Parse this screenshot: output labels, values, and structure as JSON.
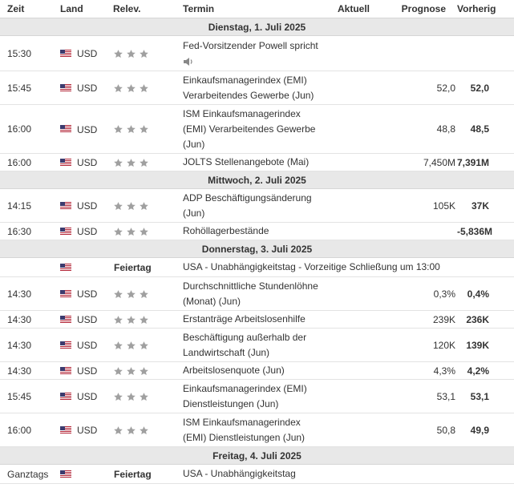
{
  "header": {
    "time": "Zeit",
    "country": "Land",
    "relevance": "Relev.",
    "event": "Termin",
    "actual": "Aktuell",
    "forecast": "Prognose",
    "previous": "Vorherig"
  },
  "colors": {
    "star": "#a0a0a0",
    "day_bar": "#e8e8e8",
    "border": "#e3e3e3",
    "flag_red": "#b22234",
    "flag_blue": "#3c3b6e"
  },
  "days": [
    {
      "label": "Dienstag, 1. Juli 2025",
      "events": [
        {
          "time": "15:30",
          "currency": "USD",
          "stars": 3,
          "lines": [
            "Fed-Vorsitzender Powell spricht"
          ],
          "speech_icon": true,
          "actual": "",
          "forecast": "",
          "previous": ""
        },
        {
          "time": "15:45",
          "currency": "USD",
          "stars": 3,
          "lines": [
            "Einkaufsmanagerindex (EMI)",
            "Verarbeitendes Gewerbe (Jun)"
          ],
          "actual": "",
          "forecast": "52,0",
          "previous": "52,0"
        },
        {
          "time": "16:00",
          "currency": "USD",
          "stars": 3,
          "lines": [
            "ISM Einkaufsmanagerindex",
            "(EMI) Verarbeitendes Gewerbe",
            "(Jun)"
          ],
          "actual": "",
          "forecast": "48,8",
          "previous": "48,5"
        },
        {
          "time": "16:00",
          "currency": "USD",
          "stars": 3,
          "lines": [
            "JOLTS Stellenangebote (Mai)"
          ],
          "actual": "",
          "forecast": "7,450M",
          "previous": "7,391M"
        }
      ]
    },
    {
      "label": "Mittwoch, 2. Juli 2025",
      "events": [
        {
          "time": "14:15",
          "currency": "USD",
          "stars": 3,
          "lines": [
            "ADP Beschäftigungsänderung",
            "(Jun)"
          ],
          "actual": "",
          "forecast": "105K",
          "previous": "37K"
        },
        {
          "time": "16:30",
          "currency": "USD",
          "stars": 3,
          "lines": [
            "Rohöllagerbestände"
          ],
          "actual": "",
          "forecast": "",
          "previous": "-5,836M"
        }
      ]
    },
    {
      "label": "Donnerstag, 3. Juli 2025",
      "events": [
        {
          "time": "",
          "currency": "",
          "holiday": "Feiertag",
          "lines": [
            "USA - Unabhängigkeitstag - Vorzeitige Schließung um 13:00"
          ],
          "actual": "",
          "forecast": "",
          "previous": ""
        },
        {
          "time": "14:30",
          "currency": "USD",
          "stars": 3,
          "lines": [
            "Durchschnittliche Stundenlöhne",
            "(Monat) (Jun)"
          ],
          "actual": "",
          "forecast": "0,3%",
          "previous": "0,4%"
        },
        {
          "time": "14:30",
          "currency": "USD",
          "stars": 3,
          "lines": [
            "Erstanträge Arbeitslosenhilfe"
          ],
          "actual": "",
          "forecast": "239K",
          "previous": "236K"
        },
        {
          "time": "14:30",
          "currency": "USD",
          "stars": 3,
          "lines": [
            "Beschäftigung außerhalb der",
            "Landwirtschaft (Jun)"
          ],
          "actual": "",
          "forecast": "120K",
          "previous": "139K"
        },
        {
          "time": "14:30",
          "currency": "USD",
          "stars": 3,
          "lines": [
            "Arbeitslosenquote (Jun)"
          ],
          "actual": "",
          "forecast": "4,3%",
          "previous": "4,2%"
        },
        {
          "time": "15:45",
          "currency": "USD",
          "stars": 3,
          "lines": [
            "Einkaufsmanagerindex (EMI)",
            "Dienstleistungen (Jun)"
          ],
          "actual": "",
          "forecast": "53,1",
          "previous": "53,1"
        },
        {
          "time": "16:00",
          "currency": "USD",
          "stars": 3,
          "lines": [
            "ISM Einkaufsmanagerindex",
            "(EMI) Dienstleistungen (Jun)"
          ],
          "actual": "",
          "forecast": "50,8",
          "previous": "49,9"
        }
      ]
    },
    {
      "label": "Freitag, 4. Juli 2025",
      "events": [
        {
          "time": "Ganztags",
          "currency": "",
          "holiday": "Feiertag",
          "lines": [
            "USA - Unabhängigkeitstag"
          ],
          "actual": "",
          "forecast": "",
          "previous": ""
        }
      ]
    }
  ]
}
